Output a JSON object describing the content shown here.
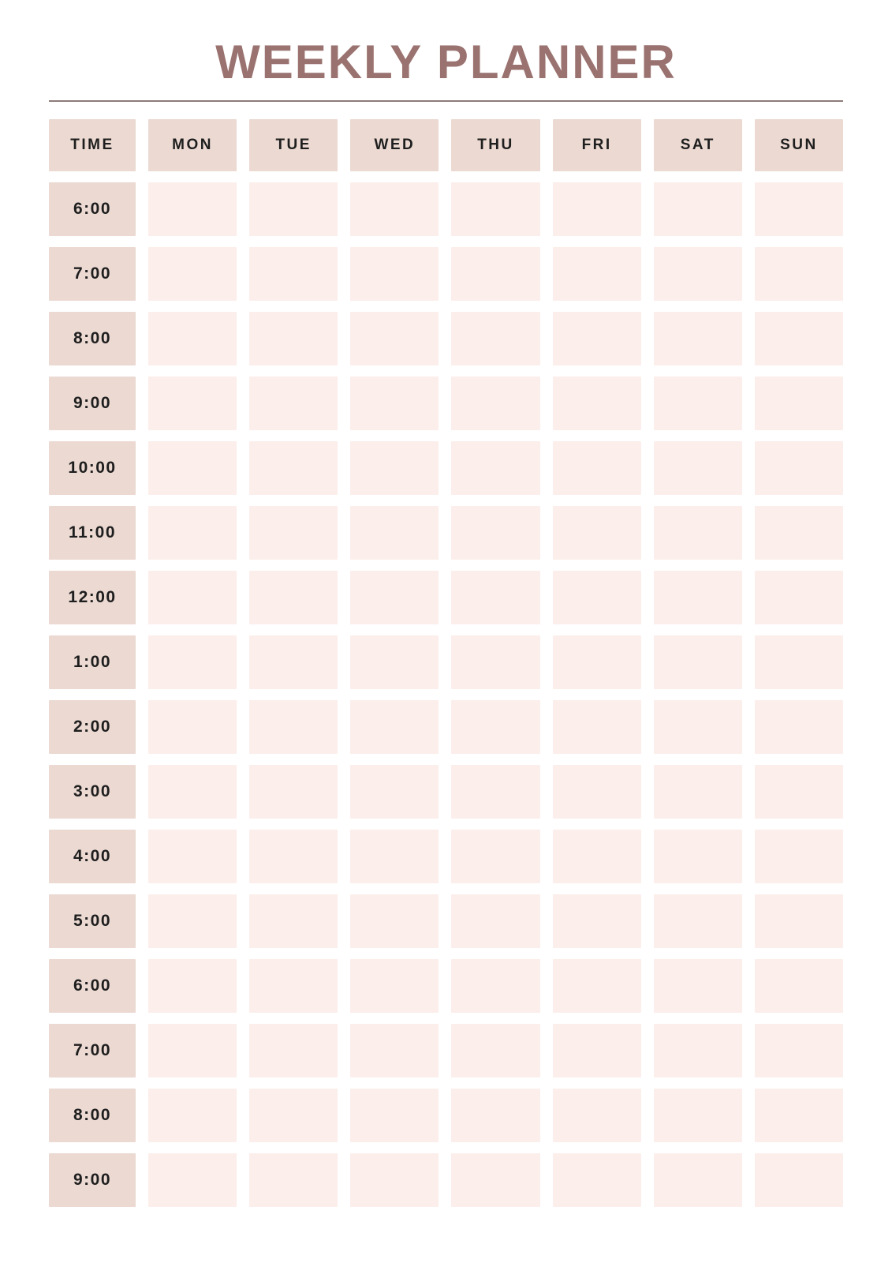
{
  "planner": {
    "title": "WEEKLY PLANNER",
    "header": {
      "time_label": "TIME",
      "days": [
        "MON",
        "TUE",
        "WED",
        "THU",
        "FRI",
        "SAT",
        "SUN"
      ]
    },
    "times": [
      "6:00",
      "7:00",
      "8:00",
      "9:00",
      "10:00",
      "11:00",
      "12:00",
      "1:00",
      "2:00",
      "3:00",
      "4:00",
      "5:00",
      "6:00",
      "7:00",
      "8:00",
      "9:00"
    ],
    "colors": {
      "title_text": "#9a7370",
      "divider": "#8e7c79",
      "header_cell_bg": "#ebd9d2",
      "time_cell_bg": "#ebd9d2",
      "slot_cell_bg": "#fceeeb",
      "label_text": "#1e1e1e",
      "page_bg": "#ffffff"
    }
  }
}
